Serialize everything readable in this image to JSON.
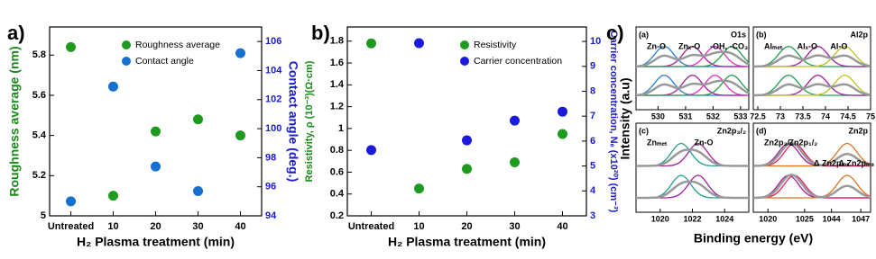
{
  "chart_data": [
    {
      "type": "scatter",
      "panel_label": "a)",
      "x_label": "H₂ Plasma treatment (min)",
      "y_label": "Roughness average (nm)",
      "y2_label": "Contact angle (deg.)",
      "categories": [
        "Untreated",
        "10",
        "20",
        "30",
        "40"
      ],
      "ylim": [
        5.0,
        5.94
      ],
      "yticks": [
        5.0,
        5.2,
        5.4,
        5.6,
        5.8
      ],
      "y2lim": [
        94,
        107
      ],
      "y2ticks": [
        94,
        96,
        98,
        100,
        102,
        104,
        106
      ],
      "y_color": "#1b8a1b",
      "y2_color": "#1a1acc",
      "legend": "upper right",
      "series": [
        {
          "name": "Roughness average",
          "color": "#1e9b1e",
          "values": [
            5.84,
            5.1,
            5.42,
            5.48,
            5.4
          ]
        },
        {
          "name": "Contact angle",
          "color": "#1570d0",
          "axis": "y2",
          "values": [
            95.0,
            102.9,
            97.4,
            95.7,
            105.2
          ]
        }
      ]
    },
    {
      "type": "scatter",
      "panel_label": "b)",
      "x_label": "H₂ Plasma treatment (min)",
      "y_label": "Resistivity, ρ (10⁻³)(Ω·cm)",
      "y2_label": "Carrier concentration, Nₑ (x10²⁰) (cm⁻³)",
      "categories": [
        "Untreated",
        "10",
        "20",
        "30",
        "40"
      ],
      "ylim": [
        0.2,
        1.93
      ],
      "yticks": [
        0.2,
        0.4,
        0.6,
        0.8,
        1.0,
        1.2,
        1.4,
        1.6,
        1.8
      ],
      "y2lim": [
        3,
        10.58
      ],
      "y2ticks": [
        3,
        4,
        5,
        6,
        7,
        8,
        9,
        10
      ],
      "y_color": "#1b8a1b",
      "y2_color": "#1a1acc",
      "legend": "upper right",
      "series": [
        {
          "name": "Resistivity",
          "color": "#1e9b1e",
          "values": [
            1.78,
            0.45,
            0.63,
            0.69,
            0.95
          ]
        },
        {
          "name": "Carrier concentration",
          "color": "#1a1add",
          "axis": "y2",
          "values": [
            5.64,
            9.93,
            6.03,
            6.82,
            7.18
          ]
        }
      ]
    },
    {
      "type": "xps",
      "panel_label": "c)",
      "x_label": "Binding energy (eV)",
      "y_label": "Intensity (a.u)",
      "subpanels": [
        {
          "tag": "(a)",
          "title": "O1s",
          "labels": [
            "Zn-O",
            "Znₓ-O",
            "-OH, -CO₃"
          ],
          "xlim": [
            529.2,
            533.3
          ],
          "xticks": [
            530,
            531,
            532,
            533
          ]
        },
        {
          "tag": "(b)",
          "title": "Al2p",
          "labels": [
            "Alₘₑₜ",
            "Alₓ-O",
            "Al-O"
          ],
          "xlim": [
            72.4,
            75.0
          ],
          "xticks": [
            72.5,
            73.0,
            73.5,
            74.0,
            74.5,
            75.0
          ]
        },
        {
          "tag": "(c)",
          "title": "Zn2p₃/₂",
          "labels": [
            "Znₘₑₜ",
            "Zn-O"
          ],
          "xlim": [
            1018.5,
            1025.5
          ],
          "xticks": [
            1020,
            1022,
            1024
          ]
        },
        {
          "tag": "(d)",
          "title": "Zn2p",
          "labels": [
            "Zn2p₃/₂",
            "Zn2p₁/₂",
            "Δ Zn2pₘₛ",
            "Δ Zn2pₘₛ"
          ],
          "segments": [
            {
              "xlim": [
                1018,
                1026
              ],
              "xticks": [
                1020,
                1025
              ]
            },
            {
              "xlim": [
                1042,
                1048
              ],
              "xticks": [
                1044,
                1047
              ]
            }
          ]
        }
      ]
    }
  ]
}
